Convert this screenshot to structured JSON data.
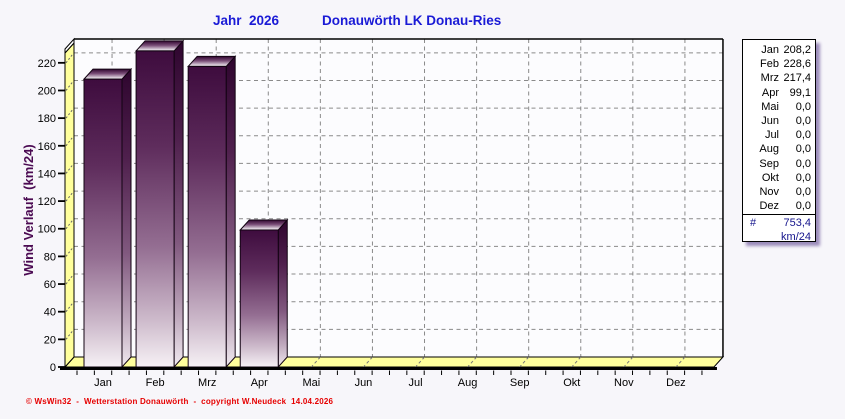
{
  "title": {
    "left": "Jahr  2026",
    "right": "Donauwörth LK Donau-Ries",
    "color": "#1a1ad6"
  },
  "y_axis": {
    "label": "Wind Verlauf  (km/24)",
    "color": "#4b0a52"
  },
  "footer": {
    "copyright": "© WsWin32  -  Wetterstation Donauwörth  -  copyright W.Neudeck  14.04.2026",
    "color": "#e60000"
  },
  "legend": {
    "total_label": "#",
    "total_value": "753,4",
    "unit": "km/24",
    "total_color": "#14148c"
  },
  "chart_data": {
    "type": "bar",
    "title": "Jahr 2026 — Donauwörth LK Donau-Ries",
    "ylabel": "Wind Verlauf (km/24)",
    "categories": [
      "Jan",
      "Feb",
      "Mrz",
      "Apr",
      "Mai",
      "Jun",
      "Jul",
      "Aug",
      "Sep",
      "Okt",
      "Nov",
      "Dez"
    ],
    "values": [
      208.2,
      228.6,
      217.4,
      99.1,
      0.0,
      0.0,
      0.0,
      0.0,
      0.0,
      0.0,
      0.0,
      0.0
    ],
    "total": 753.4,
    "unit": "km/24",
    "ylim": [
      0,
      230
    ],
    "ytick_step": 20,
    "grid": "dashed",
    "legend_position": "right",
    "colors": {
      "wall_yellow": "#ffff9c",
      "grid_gray": "#8a8a8a",
      "wall_bg": "#fcfcfe",
      "bar_outline": "#120312",
      "bar_front": [
        [
          0,
          "#3e0c3e"
        ],
        [
          0.3,
          "#5e2c5c"
        ],
        [
          0.62,
          "#946e92"
        ],
        [
          0.85,
          "#cdbacb"
        ],
        [
          1,
          "#f6f1f5"
        ]
      ],
      "bar_side": [
        [
          0,
          "#2e052e"
        ],
        [
          0.3,
          "#4f204d"
        ],
        [
          0.62,
          "#81597f"
        ],
        [
          0.85,
          "#c0aabe"
        ],
        [
          1,
          "#f0e9ef"
        ]
      ],
      "bar_top": [
        [
          0,
          "#30052f"
        ],
        [
          0.45,
          "#7a4e78"
        ],
        [
          1,
          "#ffffff"
        ]
      ]
    }
  }
}
